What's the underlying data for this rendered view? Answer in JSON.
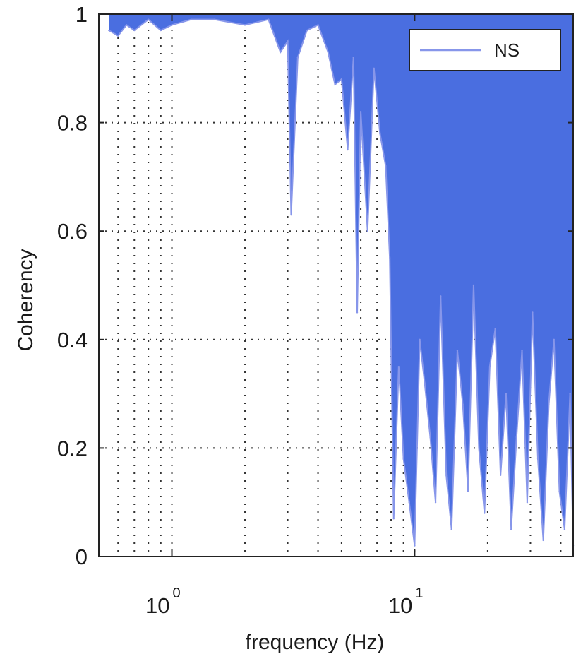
{
  "chart_data": {
    "type": "line",
    "xscale": "log",
    "xlim": [
      0.5,
      45
    ],
    "ylim": [
      0,
      1
    ],
    "xlabel": "frequency (Hz)",
    "ylabel": "Coherency",
    "x_ticks": [
      {
        "value": 1,
        "base": "10",
        "exp": "0"
      },
      {
        "value": 10,
        "base": "10",
        "exp": "1"
      }
    ],
    "y_ticks": [
      {
        "value": 0,
        "label": "0"
      },
      {
        "value": 0.2,
        "label": "0.2"
      },
      {
        "value": 0.4,
        "label": "0.4"
      },
      {
        "value": 0.6,
        "label": "0.6"
      },
      {
        "value": 0.8,
        "label": "0.8"
      },
      {
        "value": 1,
        "label": "1"
      }
    ],
    "grid": true,
    "legend": {
      "position": "top-right",
      "entries": [
        "NS"
      ]
    },
    "series": [
      {
        "name": "NS",
        "color": "#4a6ee0",
        "line_color": "#8796ea",
        "x": [
          0.55,
          0.6,
          0.65,
          0.7,
          0.8,
          0.9,
          1.0,
          1.2,
          1.5,
          2.0,
          2.5,
          2.8,
          3.0,
          3.1,
          3.3,
          3.6,
          4.0,
          4.4,
          4.7,
          5.0,
          5.3,
          5.6,
          5.8,
          6.0,
          6.4,
          6.8,
          7.2,
          7.6,
          7.9,
          8.2,
          8.6,
          9.0,
          9.5,
          10.0,
          10.5,
          11.0,
          11.6,
          12.2,
          12.8,
          13.5,
          14.2,
          15.0,
          15.8,
          16.6,
          17.5,
          18.4,
          19.4,
          20.4,
          21.5,
          22.6,
          23.8,
          25.0,
          26.3,
          27.7,
          29.1,
          30.6,
          32.2,
          33.9,
          35.7,
          37.5,
          39.5,
          41.5,
          43.7,
          45.0
        ],
        "values": [
          0.97,
          0.96,
          0.98,
          0.97,
          0.99,
          0.97,
          0.98,
          0.99,
          0.99,
          0.98,
          0.99,
          0.93,
          0.95,
          0.63,
          0.92,
          0.97,
          0.98,
          0.93,
          0.87,
          0.88,
          0.75,
          0.92,
          0.45,
          0.82,
          0.6,
          0.9,
          0.78,
          0.72,
          0.55,
          0.07,
          0.35,
          0.18,
          0.1,
          0.02,
          0.4,
          0.32,
          0.22,
          0.1,
          0.48,
          0.15,
          0.05,
          0.38,
          0.28,
          0.12,
          0.5,
          0.2,
          0.08,
          0.35,
          0.42,
          0.15,
          0.3,
          0.05,
          0.22,
          0.38,
          0.1,
          0.45,
          0.18,
          0.03,
          0.28,
          0.4,
          0.12,
          0.05,
          0.3,
          0.02
        ]
      }
    ]
  }
}
